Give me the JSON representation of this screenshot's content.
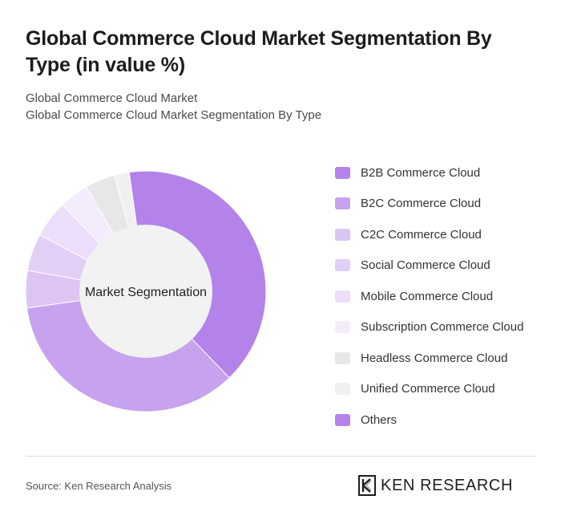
{
  "title": "Global Commerce Cloud Market Segmentation By Type (in value %)",
  "subtitle_1": "Global Commerce Cloud Market",
  "subtitle_2": "Global Commerce Cloud Market Segmentation By Type",
  "center_label": "Market Segmentation",
  "source": "Source: Ken Research Analysis",
  "brand": {
    "logo_icon": "ken-research-k-logo",
    "name": "KEN RESEARCH"
  },
  "chart_data": {
    "type": "pie",
    "variant": "donut",
    "legend_position": "right",
    "categories": [
      "B2B Commerce Cloud",
      "B2C Commerce Cloud",
      "C2C Commerce Cloud",
      "Social Commerce Cloud",
      "Mobile Commerce Cloud",
      "Subscription Commerce Cloud",
      "Headless Commerce Cloud",
      "Unified Commerce Cloud",
      "Others"
    ],
    "values": [
      40,
      35,
      5,
      5,
      5,
      4,
      4,
      2,
      0
    ],
    "colors": [
      "#b483ea",
      "#c6a2ef",
      "#dcc4f5",
      "#e3cff6",
      "#ecdefa",
      "#f3ecfc",
      "#e7e7e7",
      "#f0f0f0",
      "#b483ea"
    ],
    "hole_color": "#f2f2f2"
  }
}
